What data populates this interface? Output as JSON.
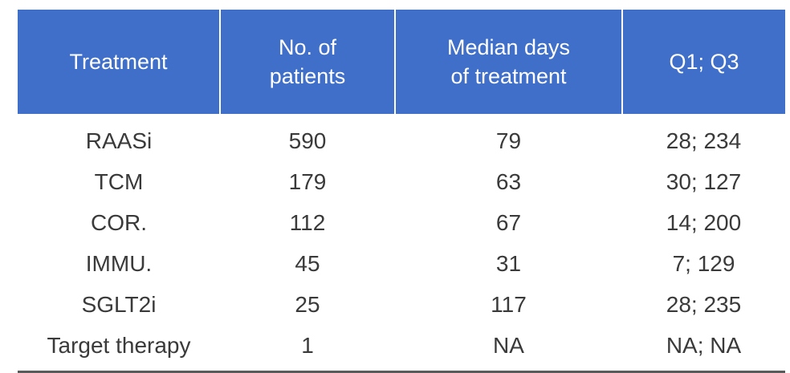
{
  "table": {
    "headers": [
      "Treatment",
      "No. of\npatients",
      "Median days\nof treatment",
      "Q1; Q3"
    ],
    "rows": [
      [
        "RAASi",
        "590",
        "79",
        "28; 234"
      ],
      [
        "TCM",
        "179",
        "63",
        "30; 127"
      ],
      [
        "COR.",
        "112",
        "67",
        "14; 200"
      ],
      [
        "IMMU.",
        "45",
        "31",
        "7; 129"
      ],
      [
        "SGLT2i",
        "25",
        "117",
        "28; 235"
      ],
      [
        "Target therapy",
        "1",
        "NA",
        "NA; NA"
      ]
    ],
    "header_color": "#3f6fc9"
  }
}
